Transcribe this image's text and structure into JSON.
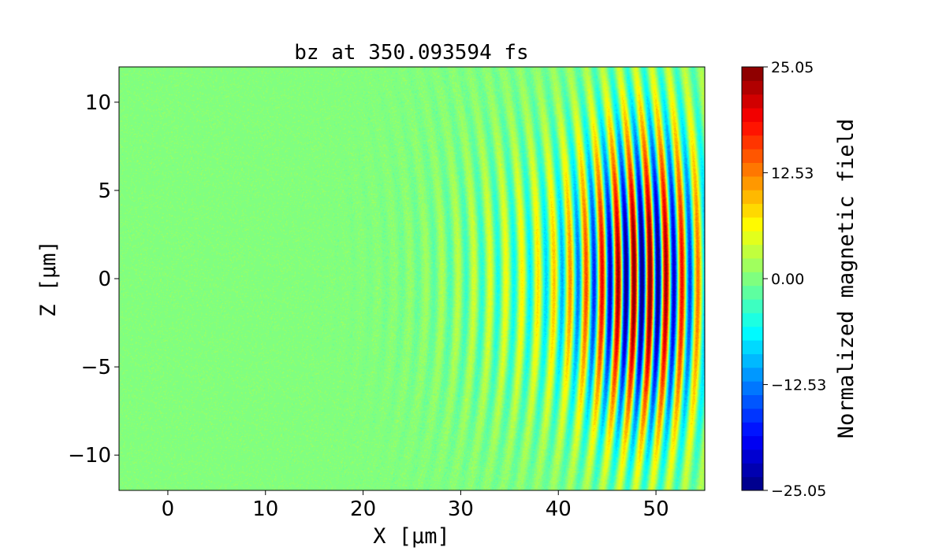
{
  "chart_data": {
    "type": "heatmap",
    "title": "bz at 350.093594 fs",
    "xlabel": "X [μm]",
    "ylabel": "Z [μm]",
    "xlim": [
      -5,
      55
    ],
    "ylim": [
      -12,
      12
    ],
    "x_ticks": [
      0,
      10,
      20,
      30,
      40,
      50
    ],
    "y_ticks": [
      -10,
      -5,
      0,
      5,
      10
    ],
    "colormap": "jet",
    "colorbar": {
      "label": "Normalized magnetic field",
      "range": [
        -25.05,
        25.05
      ],
      "ticks": [
        {
          "value": 25.05,
          "label": "25.05"
        },
        {
          "value": 12.53,
          "label": "12.53"
        },
        {
          "value": 0.0,
          "label": "0.00"
        },
        {
          "value": -12.53,
          "label": "−12.53"
        },
        {
          "value": -25.05,
          "label": "−25.05"
        }
      ],
      "levels": 31
    },
    "field": {
      "description_free": true,
      "wave_center_x": 49,
      "wave_center_z": 0,
      "wavelength_um": 0.8,
      "peak_amplitude": 25.05,
      "background_value": 0.0
    }
  }
}
